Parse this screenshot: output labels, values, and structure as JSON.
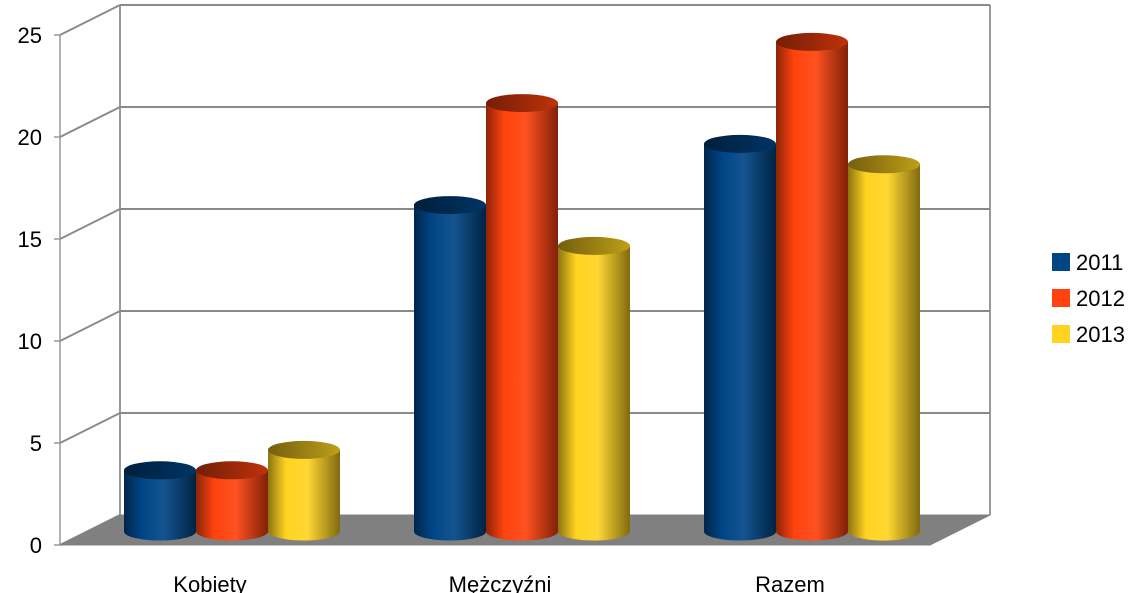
{
  "chart_data": {
    "type": "bar",
    "categories": [
      "Kobiety",
      "Mężczyźni",
      "Razem"
    ],
    "series": [
      {
        "name": "2011",
        "values": [
          3,
          16,
          19
        ],
        "color": "#004586"
      },
      {
        "name": "2012",
        "values": [
          3,
          21,
          24
        ],
        "color": "#ff420e"
      },
      {
        "name": "2013",
        "values": [
          4,
          14,
          18
        ],
        "color": "#ffd320"
      }
    ],
    "ylim": [
      0,
      25
    ],
    "yticks": [
      "0",
      "5",
      "10",
      "15",
      "20",
      "25"
    ],
    "grid": true,
    "legend_position": "right",
    "bar_shape": "cylinder",
    "style": "3d"
  }
}
